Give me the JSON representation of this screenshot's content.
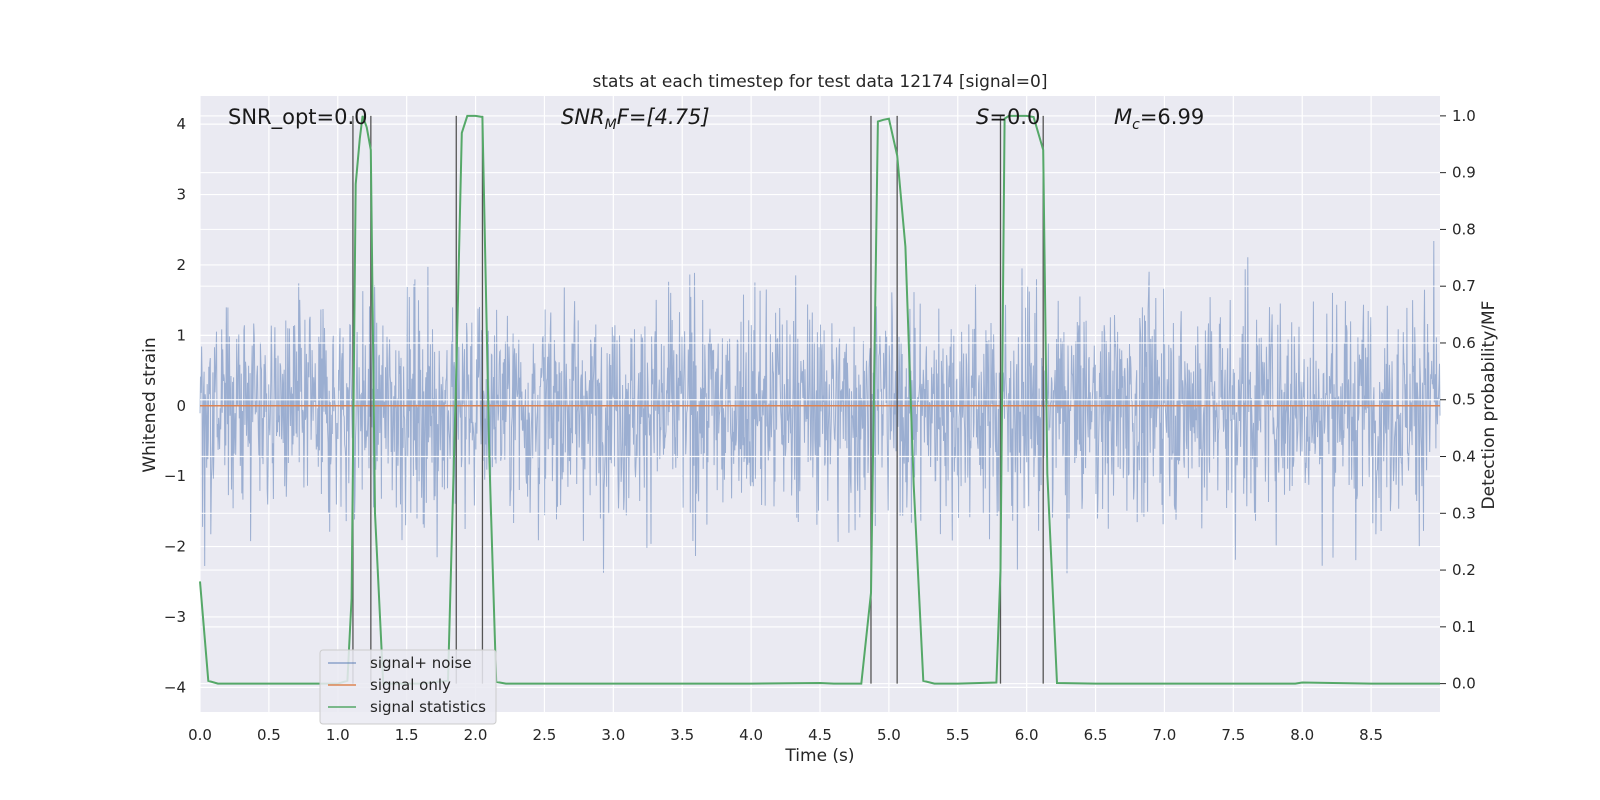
{
  "chart_data": {
    "type": "line",
    "title": "stats at each timestep for test data 12174 [signal=0]",
    "xlabel": "Time (s)",
    "ylabel_left": "Whitened strain",
    "ylabel_right": "Detection probability/MF",
    "xlim": [
      0.0,
      9.0
    ],
    "ylim_left": [
      -4.35,
      4.4
    ],
    "ylim_right": [
      -0.05,
      1.035
    ],
    "x_ticks": [
      "0.0",
      "0.5",
      "1.0",
      "1.5",
      "2.0",
      "2.5",
      "3.0",
      "3.5",
      "4.0",
      "4.5",
      "5.0",
      "5.5",
      "6.0",
      "6.5",
      "7.0",
      "7.5",
      "8.0",
      "8.5"
    ],
    "y_left_ticks": [
      "4",
      "3",
      "2",
      "1",
      "0",
      "−1",
      "−2",
      "−3",
      "−4"
    ],
    "y_right_ticks": [
      "1.0",
      "0.9",
      "0.8",
      "0.7",
      "0.6",
      "0.5",
      "0.4",
      "0.3",
      "0.2",
      "0.1",
      "0.0"
    ],
    "grid": true,
    "legend_position": "lower-left",
    "annotations": {
      "snr_opt": "SNR_opt=0.0",
      "snr_mf_main": "SNR",
      "snr_mf_sub": "M",
      "snr_mf_rest": "F=[4.75]",
      "s_main": "S",
      "s_rest": "=0.0",
      "mc_main": "M",
      "mc_sub": "c",
      "mc_rest": "=6.99"
    },
    "vertical_markers_s": [
      1.11,
      1.24,
      1.86,
      2.05,
      4.87,
      5.06,
      5.81,
      6.12
    ],
    "series": [
      {
        "name": "signal+ noise",
        "color": "#4c72b0",
        "description_values": "noise, amplitude approx ±2 to ±4"
      },
      {
        "name": "signal only",
        "color": "#dd8452",
        "x": [
          0.0,
          9.0
        ],
        "y": [
          0.0,
          0.0
        ]
      },
      {
        "name": "signal statistics",
        "color": "#55a868",
        "x": [
          0.0,
          0.06,
          0.13,
          0.3,
          1.0,
          1.07,
          1.1,
          1.13,
          1.16,
          1.18,
          1.21,
          1.24,
          1.27,
          1.33,
          1.45,
          1.6,
          1.8,
          1.86,
          1.9,
          1.94,
          2.0,
          2.05,
          2.1,
          2.15,
          2.22,
          2.5,
          3.0,
          3.5,
          4.0,
          4.5,
          4.6,
          4.8,
          4.87,
          4.92,
          4.96,
          5.0,
          5.06,
          5.12,
          5.18,
          5.25,
          5.33,
          5.5,
          5.78,
          5.81,
          5.84,
          5.87,
          6.0,
          6.05,
          6.12,
          6.15,
          6.22,
          6.5,
          7.0,
          7.5,
          7.95,
          8.0,
          8.5,
          9.0
        ],
        "y": [
          0.18,
          0.005,
          0.0,
          0.0,
          0.0,
          0.005,
          0.15,
          0.88,
          0.96,
          1.0,
          0.98,
          0.94,
          0.3,
          0.0,
          0.0,
          0.0,
          0.005,
          0.55,
          0.97,
          1.0,
          1.0,
          0.998,
          0.4,
          0.003,
          0.0,
          0.0,
          0.0,
          0.0,
          0.0,
          0.001,
          0.0,
          0.0,
          0.16,
          0.99,
          0.993,
          0.995,
          0.93,
          0.77,
          0.35,
          0.005,
          0.0,
          0.0,
          0.002,
          0.2,
          0.995,
          1.0,
          1.0,
          0.998,
          0.94,
          0.37,
          0.001,
          0.0,
          0.0,
          0.0,
          0.0,
          0.002,
          0.0,
          0.0
        ]
      }
    ]
  }
}
